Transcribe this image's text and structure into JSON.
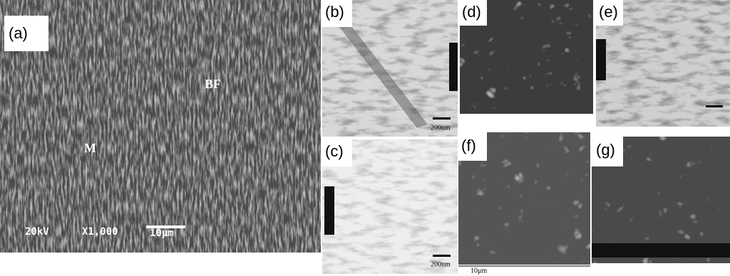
{
  "panels": [
    {
      "label": "(a)",
      "annotations": [
        "BF",
        "M"
      ],
      "scale": [
        "20kV",
        "X1,000",
        "10μm"
      ]
    },
    {
      "label": "(b)",
      "scale": [
        "200nm"
      ]
    },
    {
      "label": "(c)",
      "scale": [
        "200nm"
      ]
    },
    {
      "label": "(d)"
    },
    {
      "label": "(e)"
    },
    {
      "label": "(f)",
      "scale": [
        "10μm"
      ]
    },
    {
      "label": "(g)"
    }
  ]
}
